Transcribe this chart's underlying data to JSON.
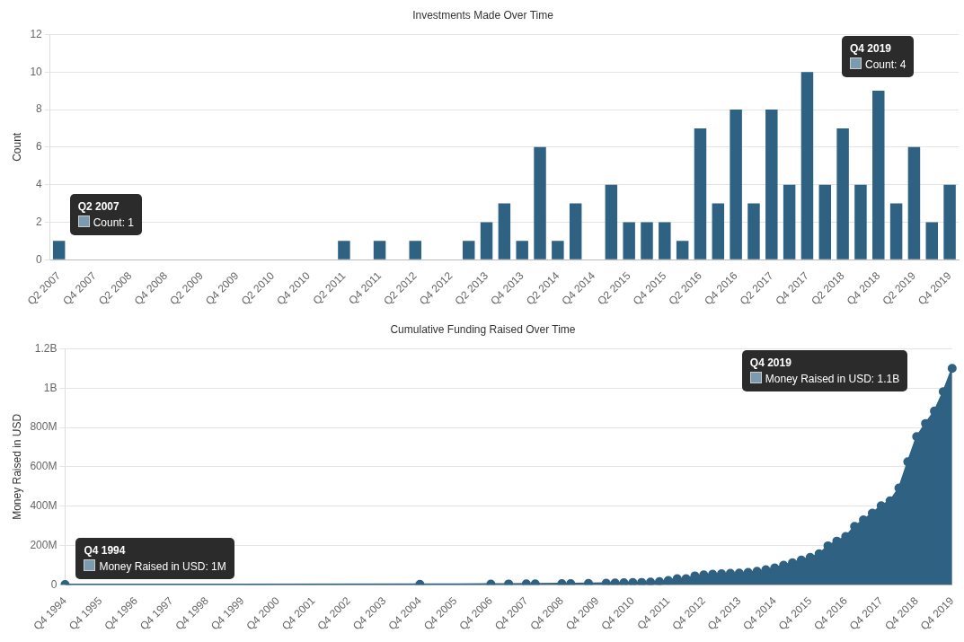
{
  "chart_data": [
    {
      "type": "bar",
      "title": "Investments Made Over Time",
      "ylabel": "Count",
      "categories": [
        "Q2 2007",
        null,
        "Q4 2007",
        null,
        "Q2 2008",
        null,
        "Q4 2008",
        null,
        "Q2 2009",
        null,
        "Q4 2009",
        null,
        "Q2 2010",
        null,
        "Q4 2010",
        null,
        "Q2 2011",
        null,
        "Q4 2011",
        null,
        "Q2 2012",
        null,
        "Q4 2012",
        null,
        "Q2 2013",
        null,
        "Q4 2013",
        null,
        "Q2 2014",
        null,
        "Q4 2014",
        null,
        "Q2 2015",
        null,
        "Q4 2015",
        null,
        "Q2 2016",
        null,
        "Q4 2016",
        null,
        "Q2 2017",
        null,
        "Q4 2017",
        null,
        "Q2 2018",
        null,
        "Q4 2018",
        null,
        "Q2 2019",
        null,
        "Q4 2019"
      ],
      "values": [
        1,
        0,
        0,
        0,
        0,
        0,
        0,
        0,
        0,
        0,
        0,
        0,
        0,
        0,
        0,
        0,
        1,
        0,
        1,
        0,
        1,
        0,
        0,
        1,
        2,
        3,
        1,
        6,
        1,
        3,
        0,
        4,
        2,
        2,
        2,
        1,
        7,
        3,
        8,
        3,
        8,
        4,
        10,
        4,
        7,
        4,
        9,
        3,
        6,
        2,
        4
      ],
      "color": "#2f6183",
      "ylim": [
        0,
        12
      ],
      "yticks": [
        0,
        2,
        4,
        6,
        8,
        10,
        12
      ],
      "grid": "y",
      "annotations": [
        {
          "text": "Q2 2007\nCount: 1",
          "x": "Q2 2007",
          "y": 1
        },
        "Q4 2019\nCount: 4"
      ]
    },
    {
      "type": "area",
      "title": "Cumulative Funding Raised Over Time",
      "ylabel": "Money Raised in USD",
      "categories": [
        "Q4 1994",
        null,
        null,
        null,
        "Q4 1995",
        null,
        null,
        null,
        "Q4 1996",
        null,
        null,
        null,
        "Q4 1997",
        null,
        null,
        null,
        "Q4 1998",
        null,
        null,
        null,
        "Q4 1999",
        null,
        null,
        null,
        "Q4 2000",
        null,
        null,
        null,
        "Q4 2001",
        null,
        null,
        null,
        "Q4 2002",
        null,
        null,
        null,
        "Q4 2003",
        null,
        null,
        null,
        "Q4 2004",
        null,
        null,
        null,
        "Q4 2005",
        null,
        null,
        null,
        "Q4 2006",
        null,
        null,
        null,
        "Q4 2007",
        null,
        null,
        null,
        "Q4 2008",
        null,
        null,
        null,
        "Q4 2009",
        null,
        null,
        null,
        "Q4 2010",
        null,
        null,
        null,
        "Q4 2011",
        null,
        null,
        null,
        "Q4 2012",
        null,
        null,
        null,
        "Q4 2013",
        null,
        null,
        null,
        "Q4 2014",
        null,
        null,
        null,
        "Q4 2015",
        null,
        null,
        null,
        "Q4 2016",
        null,
        null,
        null,
        "Q4 2017",
        null,
        null,
        null,
        "Q4 2018",
        null,
        null,
        null,
        "Q4 2019"
      ],
      "values": [
        1000000,
        null,
        null,
        null,
        null,
        null,
        null,
        null,
        null,
        null,
        null,
        null,
        null,
        null,
        null,
        null,
        null,
        null,
        null,
        null,
        null,
        null,
        null,
        null,
        null,
        null,
        null,
        null,
        null,
        null,
        null,
        null,
        null,
        null,
        null,
        null,
        null,
        null,
        null,
        null,
        2000000,
        null,
        null,
        null,
        null,
        null,
        null,
        null,
        3000000,
        null,
        4000000,
        null,
        5000000,
        5000000,
        null,
        null,
        6000000,
        6000000,
        null,
        7000000,
        null,
        8000000,
        9000000,
        10000000,
        11000000,
        12000000,
        14000000,
        16000000,
        22000000,
        31000000,
        31000000,
        45000000,
        50000000,
        54000000,
        56000000,
        58000000,
        59000000,
        63000000,
        68000000,
        76000000,
        86000000,
        99000000,
        112000000,
        126000000,
        139000000,
        157000000,
        198000000,
        222000000,
        245000000,
        297000000,
        330000000,
        364000000,
        402000000,
        427000000,
        492000000,
        625000000,
        753000000,
        820000000,
        883000000,
        982000000,
        1100000000
      ],
      "color": "#2f6183",
      "marker": "circle",
      "ylim": [
        0,
        1200000000
      ],
      "yticks": [
        0,
        {
          "value": 200000000,
          "label": "200M"
        },
        {
          "value": 400000000,
          "label": "400M"
        },
        {
          "value": 600000000,
          "label": "600M"
        },
        {
          "value": 800000000,
          "label": "800M"
        },
        {
          "value": 1000000000,
          "label": "1B"
        },
        {
          "value": 1200000000,
          "label": "1.2B"
        }
      ],
      "grid": "y",
      "annotations": [
        {
          "text": "Q4 1994\nMoney Raised in USD: 1M",
          "x": "Q4 1994",
          "y": 1000000
        },
        "Q4 2019\nMoney Raised in USD: 1.1B"
      ]
    }
  ]
}
